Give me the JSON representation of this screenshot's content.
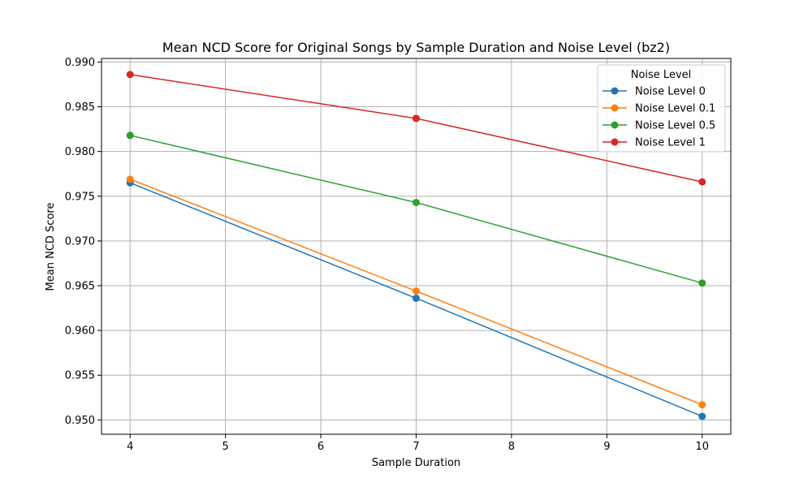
{
  "chart_data": {
    "type": "line",
    "title": "Mean NCD Score for Original Songs by Sample Duration and Noise Level (bz2)",
    "xlabel": "Sample Duration",
    "ylabel": "Mean NCD Score",
    "xlim": [
      3.7,
      10.3
    ],
    "ylim": [
      0.9484,
      0.9904
    ],
    "xticks": [
      4,
      5,
      6,
      7,
      8,
      9,
      10
    ],
    "xtick_labels": [
      "4",
      "5",
      "6",
      "7",
      "8",
      "9",
      "10"
    ],
    "yticks": [
      0.95,
      0.955,
      0.96,
      0.965,
      0.97,
      0.975,
      0.98,
      0.985,
      0.99
    ],
    "ytick_labels": [
      "0.950",
      "0.955",
      "0.960",
      "0.965",
      "0.970",
      "0.975",
      "0.980",
      "0.985",
      "0.990"
    ],
    "grid": true,
    "legend": {
      "title": "Noise Level",
      "placement": "top-right"
    },
    "x": [
      4,
      7,
      10
    ],
    "series": [
      {
        "name": "Noise Level 0",
        "color": "#1f77b4",
        "values": [
          0.9765,
          0.9636,
          0.9504
        ]
      },
      {
        "name": "Noise Level 0.1",
        "color": "#ff7f0e",
        "values": [
          0.9769,
          0.9644,
          0.9517
        ]
      },
      {
        "name": "Noise Level 0.5",
        "color": "#2ca02c",
        "values": [
          0.9818,
          0.9743,
          0.9653
        ]
      },
      {
        "name": "Noise Level 1",
        "color": "#d62728",
        "values": [
          0.9886,
          0.9837,
          0.9766
        ]
      }
    ]
  }
}
